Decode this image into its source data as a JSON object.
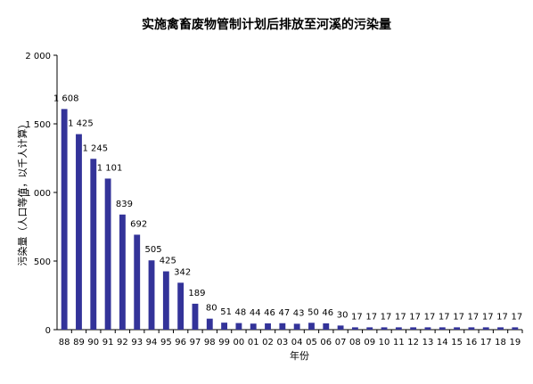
{
  "chart_data": {
    "type": "bar",
    "title": "实施禽畜废物管制计划后排放至河溪的污染量",
    "xlabel": "年份",
    "ylabel": "污染量（人口等值，以千人计算）",
    "y_tick_labels": [
      "0",
      "500",
      "1 000",
      "1 500",
      "2 000"
    ],
    "y_ticks": [
      0,
      500,
      1000,
      1500,
      2000
    ],
    "ylim": [
      0,
      2000
    ],
    "grid": false,
    "legend": "none",
    "bar_color": "#333399",
    "categories": [
      "88",
      "89",
      "90",
      "91",
      "92",
      "93",
      "94",
      "95",
      "96",
      "97",
      "98",
      "99",
      "00",
      "01",
      "02",
      "03",
      "04",
      "05",
      "06",
      "07",
      "08",
      "09",
      "10",
      "11",
      "12",
      "13",
      "14",
      "15",
      "16",
      "17",
      "18",
      "19"
    ],
    "values": [
      1608,
      1425,
      1245,
      1101,
      839,
      692,
      505,
      425,
      342,
      189,
      80,
      51,
      48,
      44,
      46,
      47,
      43,
      50,
      46,
      30,
      17,
      17,
      17,
      17,
      17,
      17,
      17,
      17,
      17,
      17,
      17,
      17
    ],
    "value_labels": [
      "1 608",
      "1 425",
      "1 245",
      "1 101",
      "839",
      "692",
      "505",
      "425",
      "342",
      "189",
      "80",
      "51",
      "48",
      "44",
      "46",
      "47",
      "43",
      "50",
      "46",
      "30",
      "17",
      "17",
      "17",
      "17",
      "17",
      "17",
      "17",
      "17",
      "17",
      "17",
      "17",
      "17"
    ]
  }
}
